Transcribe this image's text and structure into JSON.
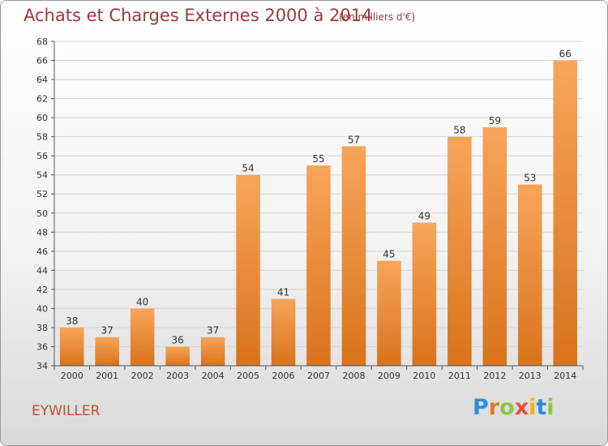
{
  "header": {
    "title": "Achats et Charges Externes 2000 à 2014",
    "subtitle": "(en milliers d'€)"
  },
  "footer": {
    "commune": "EYWILLER",
    "brand": "Proxiti",
    "brand_letters": [
      {
        "ch": "P",
        "color": "#2f8fd8"
      },
      {
        "ch": "r",
        "color": "#e2792a"
      },
      {
        "ch": "o",
        "color": "#8cc63f"
      },
      {
        "ch": "x",
        "color": "#e94e3d"
      },
      {
        "ch": "i",
        "color": "#f2b51c"
      },
      {
        "ch": "t",
        "color": "#2f8fd8"
      },
      {
        "ch": "i",
        "color": "#8cc63f"
      }
    ]
  },
  "chart_data": {
    "type": "bar",
    "categories": [
      "2000",
      "2001",
      "2002",
      "2003",
      "2004",
      "2005",
      "2006",
      "2007",
      "2008",
      "2009",
      "2010",
      "2011",
      "2012",
      "2013",
      "2014"
    ],
    "values": [
      38,
      37,
      40,
      36,
      37,
      54,
      41,
      55,
      57,
      45,
      49,
      58,
      59,
      53,
      66
    ],
    "ylim": [
      34,
      68
    ],
    "yticks": [
      34,
      36,
      38,
      40,
      42,
      44,
      46,
      48,
      50,
      52,
      54,
      56,
      58,
      60,
      62,
      64,
      66,
      68
    ],
    "grid": true,
    "data_labels": true,
    "colors": {
      "bar_light": "#f7a55a",
      "bar_dark": "#d9731c",
      "grid": "#d6d6d6",
      "axis": "#555555"
    }
  }
}
